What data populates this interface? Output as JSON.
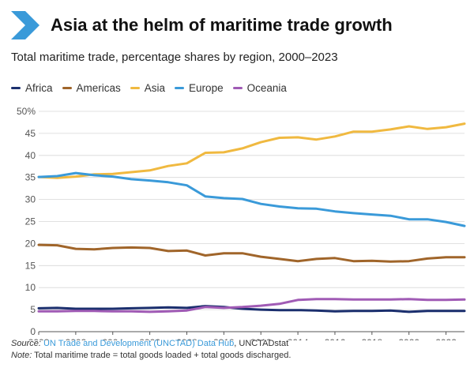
{
  "header": {
    "title": "Asia at the helm of maritime trade growth",
    "subtitle": "Total maritime trade, percentage shares by region, 2000–2023"
  },
  "footer": {
    "source_label": "Source:",
    "source_link": "UN Trade and Development (UNCTAD) Data Hub",
    "source_rest": ", UNCTADstat",
    "note_label": "Note:",
    "note_text": "Total maritime trade = total goods loaded + total goods discharged."
  },
  "colors": {
    "chevron": "#3a9ad9",
    "grid": "#d7d7d7",
    "axis": "#555555"
  },
  "chart_data": {
    "type": "line",
    "title": "Asia at the helm of maritime trade growth",
    "subtitle": "Total maritime trade, percentage shares by region, 2000–2023",
    "x": [
      2000,
      2001,
      2002,
      2003,
      2004,
      2005,
      2006,
      2007,
      2008,
      2009,
      2010,
      2011,
      2012,
      2013,
      2014,
      2015,
      2016,
      2017,
      2018,
      2019,
      2020,
      2021,
      2022,
      2023
    ],
    "xlim": [
      2000,
      2023
    ],
    "ylim": [
      0,
      50
    ],
    "x_ticks": [
      "2000",
      "2002",
      "2004",
      "2006",
      "2008",
      "2010",
      "2012",
      "2014",
      "2016",
      "2018",
      "2020",
      "2022"
    ],
    "y_ticks": [
      "0",
      "5",
      "10",
      "15",
      "20",
      "25",
      "30",
      "35",
      "40",
      "45",
      "50%"
    ],
    "grid": true,
    "legend_position": "top-left",
    "series": [
      {
        "name": "Africa",
        "color": "#1b2f6e",
        "values": [
          5.3,
          5.4,
          5.2,
          5.2,
          5.2,
          5.3,
          5.4,
          5.5,
          5.4,
          5.8,
          5.6,
          5.2,
          5.0,
          4.9,
          4.9,
          4.8,
          4.6,
          4.7,
          4.7,
          4.8,
          4.5,
          4.7,
          4.7,
          4.7
        ]
      },
      {
        "name": "Americas",
        "color": "#a0652a",
        "values": [
          19.7,
          19.6,
          18.8,
          18.7,
          19.0,
          19.1,
          19.0,
          18.3,
          18.4,
          17.3,
          17.8,
          17.8,
          17.0,
          16.5,
          16.0,
          16.5,
          16.7,
          16.0,
          16.1,
          15.9,
          16.0,
          16.6,
          16.9,
          16.9
        ]
      },
      {
        "name": "Asia",
        "color": "#f0b940",
        "values": [
          35.1,
          34.9,
          35.2,
          35.7,
          35.8,
          36.2,
          36.6,
          37.6,
          38.2,
          40.6,
          40.7,
          41.6,
          43.0,
          44.0,
          44.1,
          43.6,
          44.3,
          45.4,
          45.4,
          45.9,
          46.6,
          46.0,
          46.4,
          47.2
        ]
      },
      {
        "name": "Europe",
        "color": "#3a9ad9",
        "values": [
          35.1,
          35.3,
          36.0,
          35.5,
          35.2,
          34.6,
          34.3,
          33.9,
          33.2,
          30.7,
          30.3,
          30.1,
          29.0,
          28.4,
          28.0,
          27.9,
          27.3,
          26.9,
          26.6,
          26.3,
          25.5,
          25.5,
          24.9,
          24.0
        ]
      },
      {
        "name": "Oceania",
        "color": "#a05bb5",
        "values": [
          4.6,
          4.6,
          4.7,
          4.7,
          4.6,
          4.6,
          4.5,
          4.6,
          4.8,
          5.6,
          5.4,
          5.6,
          5.9,
          6.3,
          7.2,
          7.4,
          7.4,
          7.3,
          7.3,
          7.3,
          7.4,
          7.2,
          7.2,
          7.3
        ]
      }
    ]
  }
}
